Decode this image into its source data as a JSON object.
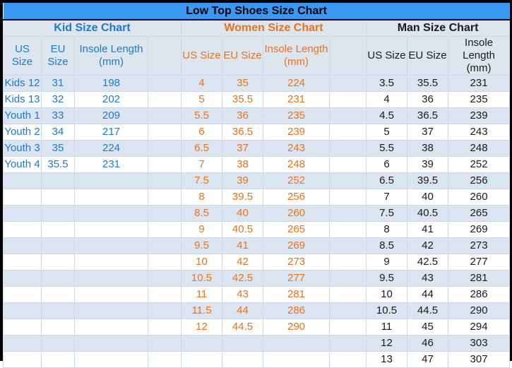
{
  "title": "Low Top Shoes Size Chart",
  "colors": {
    "title_bar_bg": "#3898f3",
    "header_row_bg": "#dde5ef",
    "shaded_row_bg": "#dbe5f1",
    "plain_row_bg": "#ffffff",
    "kid_text": "#1c7ad0",
    "women_text": "#e8731a",
    "man_text": "#1a1a1a",
    "grid_line": "#ccd8e6",
    "outer_border": "#000000"
  },
  "sections": [
    {
      "id": "kid",
      "label": "Kid Size Chart",
      "columns": [
        "US Size",
        "EU Size",
        "Insole Length (mm)"
      ],
      "rows": [
        [
          "Kids 12",
          "31",
          "198"
        ],
        [
          "Kids 13",
          "32",
          "202"
        ],
        [
          "Youth 1",
          "33",
          "209"
        ],
        [
          "Youth 2",
          "34",
          "217"
        ],
        [
          "Youth 3",
          "35",
          "224"
        ],
        [
          "Youth 4",
          "35.5",
          "231"
        ]
      ]
    },
    {
      "id": "women",
      "label": "Women Size Chart",
      "columns": [
        "US Size",
        "EU Size",
        "Insole Length (mm)"
      ],
      "rows": [
        [
          "4",
          "35",
          "224"
        ],
        [
          "5",
          "35.5",
          "231"
        ],
        [
          "5.5",
          "36",
          "235"
        ],
        [
          "6",
          "36.5",
          "239"
        ],
        [
          "6.5",
          "37",
          "243"
        ],
        [
          "7",
          "38",
          "248"
        ],
        [
          "7.5",
          "39",
          "252"
        ],
        [
          "8",
          "39.5",
          "256"
        ],
        [
          "8.5",
          "40",
          "260"
        ],
        [
          "9",
          "40.5",
          "265"
        ],
        [
          "9.5",
          "41",
          "269"
        ],
        [
          "10",
          "42",
          "273"
        ],
        [
          "10.5",
          "42.5",
          "277"
        ],
        [
          "11",
          "43",
          "281"
        ],
        [
          "11.5",
          "44",
          "286"
        ],
        [
          "12",
          "44.5",
          "290"
        ]
      ]
    },
    {
      "id": "man",
      "label": "Man Size Chart",
      "columns": [
        "US Size",
        "EU Size",
        "Insole Length (mm)"
      ],
      "rows": [
        [
          "3.5",
          "35.5",
          "231"
        ],
        [
          "4",
          "36",
          "235"
        ],
        [
          "4.5",
          "36.5",
          "239"
        ],
        [
          "5",
          "37",
          "243"
        ],
        [
          "5.5",
          "38",
          "248"
        ],
        [
          "6",
          "39",
          "252"
        ],
        [
          "6.5",
          "39.5",
          "256"
        ],
        [
          "7",
          "40",
          "260"
        ],
        [
          "7.5",
          "40.5",
          "265"
        ],
        [
          "8",
          "41",
          "269"
        ],
        [
          "8.5",
          "42",
          "273"
        ],
        [
          "9",
          "42.5",
          "277"
        ],
        [
          "9.5",
          "43",
          "281"
        ],
        [
          "10",
          "44",
          "286"
        ],
        [
          "10.5",
          "44.5",
          "290"
        ],
        [
          "11",
          "45",
          "294"
        ],
        [
          "12",
          "46",
          "303"
        ],
        [
          "13",
          "47",
          "307"
        ]
      ]
    }
  ],
  "body_row_count": 18
}
